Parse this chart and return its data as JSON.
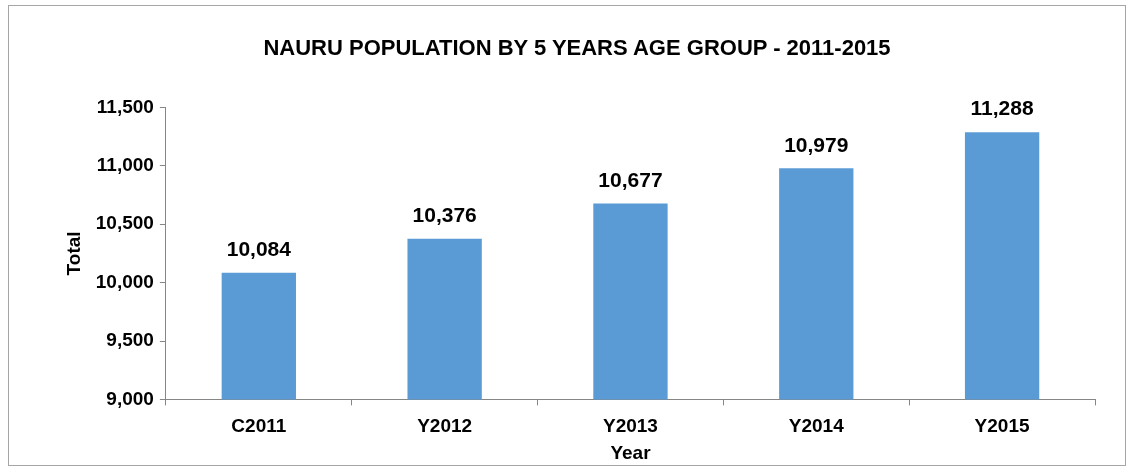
{
  "chart_data": {
    "type": "bar",
    "title": "NAURU POPULATION BY 5 YEARS AGE GROUP - 2011-2015",
    "xlabel": "Year",
    "ylabel": "Total",
    "categories": [
      "C2011",
      "Y2012",
      "Y2013",
      "Y2014",
      "Y2015"
    ],
    "values": [
      10084,
      10376,
      10677,
      10979,
      11288
    ],
    "value_labels": [
      "10,084",
      "10,376",
      "10,677",
      "10,979",
      "11,288"
    ],
    "color": "#5b9bd5",
    "ylim": [
      9000,
      11500
    ],
    "yticks": [
      {
        "value": 9000,
        "label": "9,000"
      },
      {
        "value": 9500,
        "label": "9,500"
      },
      {
        "value": 10000,
        "label": "10,000"
      },
      {
        "value": 10500,
        "label": "10,500"
      },
      {
        "value": 11000,
        "label": "11,000"
      },
      {
        "value": 11500,
        "label": "11,500"
      }
    ]
  }
}
